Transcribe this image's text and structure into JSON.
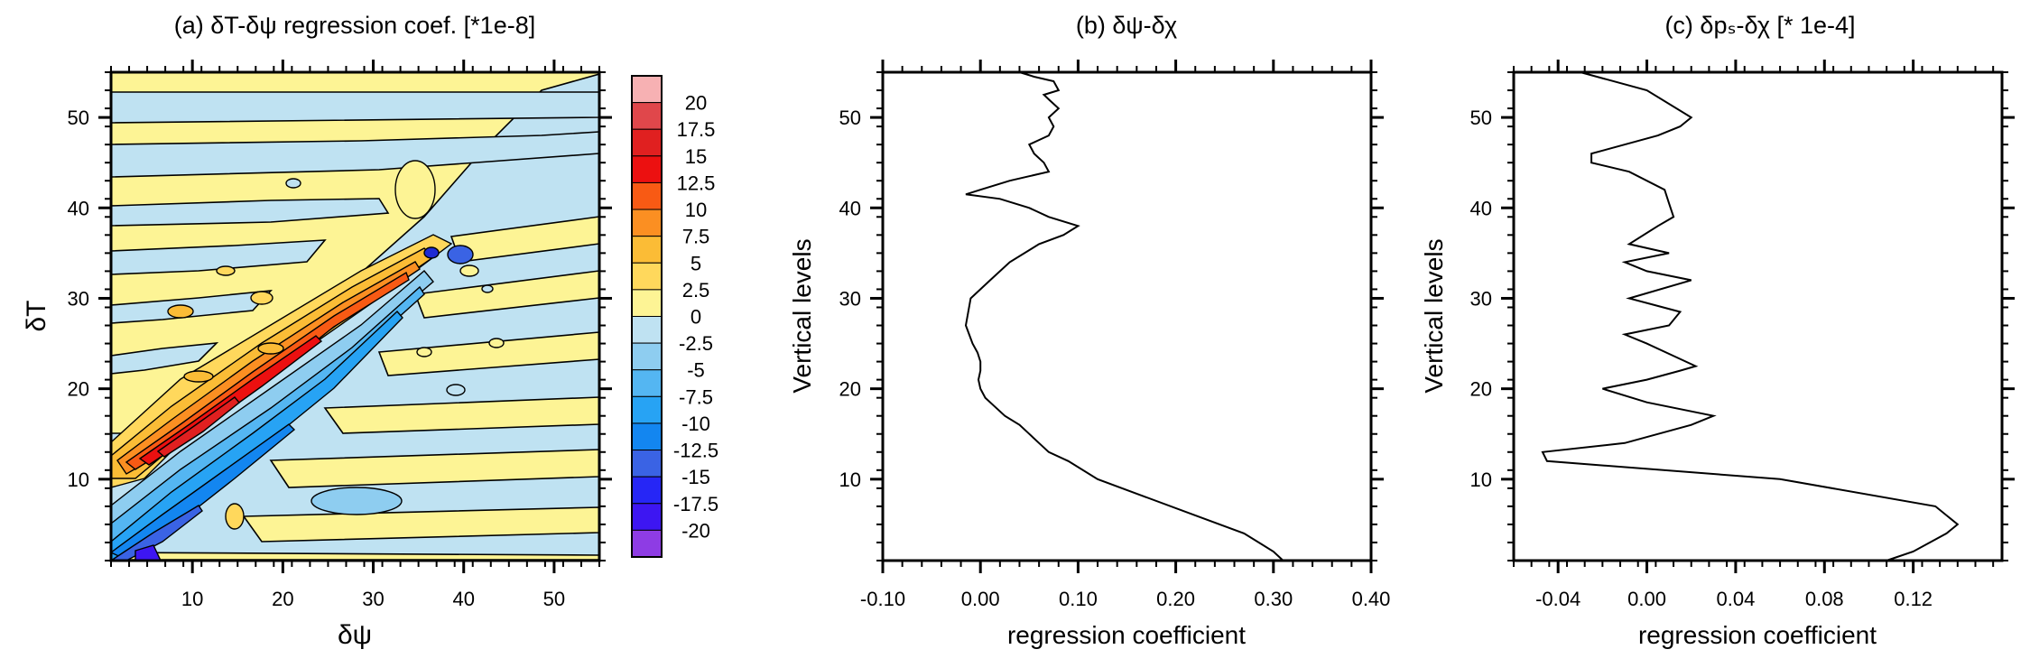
{
  "chart_data": [
    {
      "type": "heatmap",
      "title": "(a) δT-δψ regression coef. [*1e-8]",
      "xlabel": "δψ",
      "ylabel": "δT",
      "xlim": [
        1,
        55
      ],
      "ylim": [
        1,
        55
      ],
      "xticks": [
        10,
        20,
        30,
        40,
        50
      ],
      "yticks": [
        10,
        20,
        30,
        40,
        50
      ],
      "colorbar": {
        "labels": [
          "20",
          "17.5",
          "15",
          "12.5",
          "10",
          "7.5",
          "5",
          "2.5",
          "0",
          "-2.5",
          "-5",
          "-7.5",
          "-10",
          "-12.5",
          "-15",
          "-17.5",
          "-20"
        ],
        "colors": [
          "#f7b1b3",
          "#e0474b",
          "#e02020",
          "#ec1010",
          "#f85a14",
          "#fb8f22",
          "#fbbc36",
          "#ffd85c",
          "#fdf495",
          "#bfe2f2",
          "#8ecdf0",
          "#54b6f2",
          "#27a3f4",
          "#1386f0",
          "#3a63e4",
          "#2626f6",
          "#3d16f2",
          "#8e3ce4"
        ]
      }
    },
    {
      "type": "line",
      "title": "(b) δψ-δχ",
      "xlabel": "regression coefficient",
      "ylabel": "Vertical levels",
      "xlim": [
        -0.1,
        0.4
      ],
      "ylim": [
        1,
        55
      ],
      "xticks": [
        "-0.10",
        "0.00",
        "0.10",
        "0.20",
        "0.30",
        "0.40"
      ],
      "yticks": [
        10,
        20,
        30,
        40,
        50
      ],
      "series": [
        {
          "x": [
            0.31,
            0.3,
            0.27,
            0.22,
            0.17,
            0.12,
            0.09,
            0.07,
            0.06,
            0.05,
            0.04,
            0.025,
            0.015,
            0.005,
            0.0,
            -0.002,
            0.0,
            0.0,
            -0.003,
            -0.008,
            -0.015,
            -0.01,
            0.01,
            0.03,
            0.06,
            0.085,
            0.1,
            0.07,
            0.05,
            0.02,
            -0.015,
            0.0,
            0.03,
            0.05,
            0.07,
            0.065,
            0.055,
            0.05,
            0.06,
            0.07,
            0.075,
            0.07,
            0.08,
            0.07,
            0.065,
            0.08,
            0.075,
            0.055,
            0.04
          ],
          "y": [
            1,
            2,
            4,
            6,
            8,
            10,
            12,
            13,
            14,
            15,
            16,
            17,
            18,
            19,
            20,
            21,
            22,
            23,
            24,
            25,
            27,
            30,
            32,
            34,
            36,
            37,
            38,
            39,
            40,
            41,
            41.5,
            42,
            43,
            43.5,
            44,
            45,
            46,
            47,
            47.5,
            48,
            49,
            50,
            51,
            52,
            52.5,
            53,
            54,
            54.5,
            55
          ]
        }
      ]
    },
    {
      "type": "line",
      "title": "(c) δpₛ-δχ [* 1e-4]",
      "xlabel": "regression coefficient",
      "ylabel": "Vertical levels",
      "xlim": [
        -0.06,
        0.16
      ],
      "ylim": [
        1,
        55
      ],
      "xticks": [
        "-0.04",
        "0.00",
        "0.04",
        "0.08",
        "0.12"
      ],
      "yticks": [
        10,
        20,
        30,
        40,
        50
      ],
      "series": [
        {
          "x": [
            0.108,
            0.12,
            0.135,
            0.14,
            0.13,
            0.06,
            -0.045,
            -0.047,
            -0.01,
            0.02,
            0.03,
            0.0,
            -0.02,
            0.0,
            0.015,
            0.022,
            0.0,
            -0.01,
            0.01,
            0.015,
            -0.008,
            0.02,
            0.0,
            -0.01,
            0.01,
            -0.008,
            0.005,
            0.012,
            0.01,
            0.008,
            -0.008,
            -0.025,
            -0.025,
            0.005,
            0.015,
            0.02,
            0.0,
            -0.03
          ],
          "y": [
            1,
            2,
            4,
            5,
            7,
            10,
            12,
            13,
            14,
            16,
            17,
            18.5,
            20,
            21,
            22,
            22.5,
            25,
            26,
            27,
            28.5,
            30,
            32,
            33,
            34,
            35,
            36,
            38,
            39,
            40.5,
            42,
            44,
            45,
            46,
            48,
            49,
            50,
            53,
            55
          ]
        }
      ]
    }
  ]
}
